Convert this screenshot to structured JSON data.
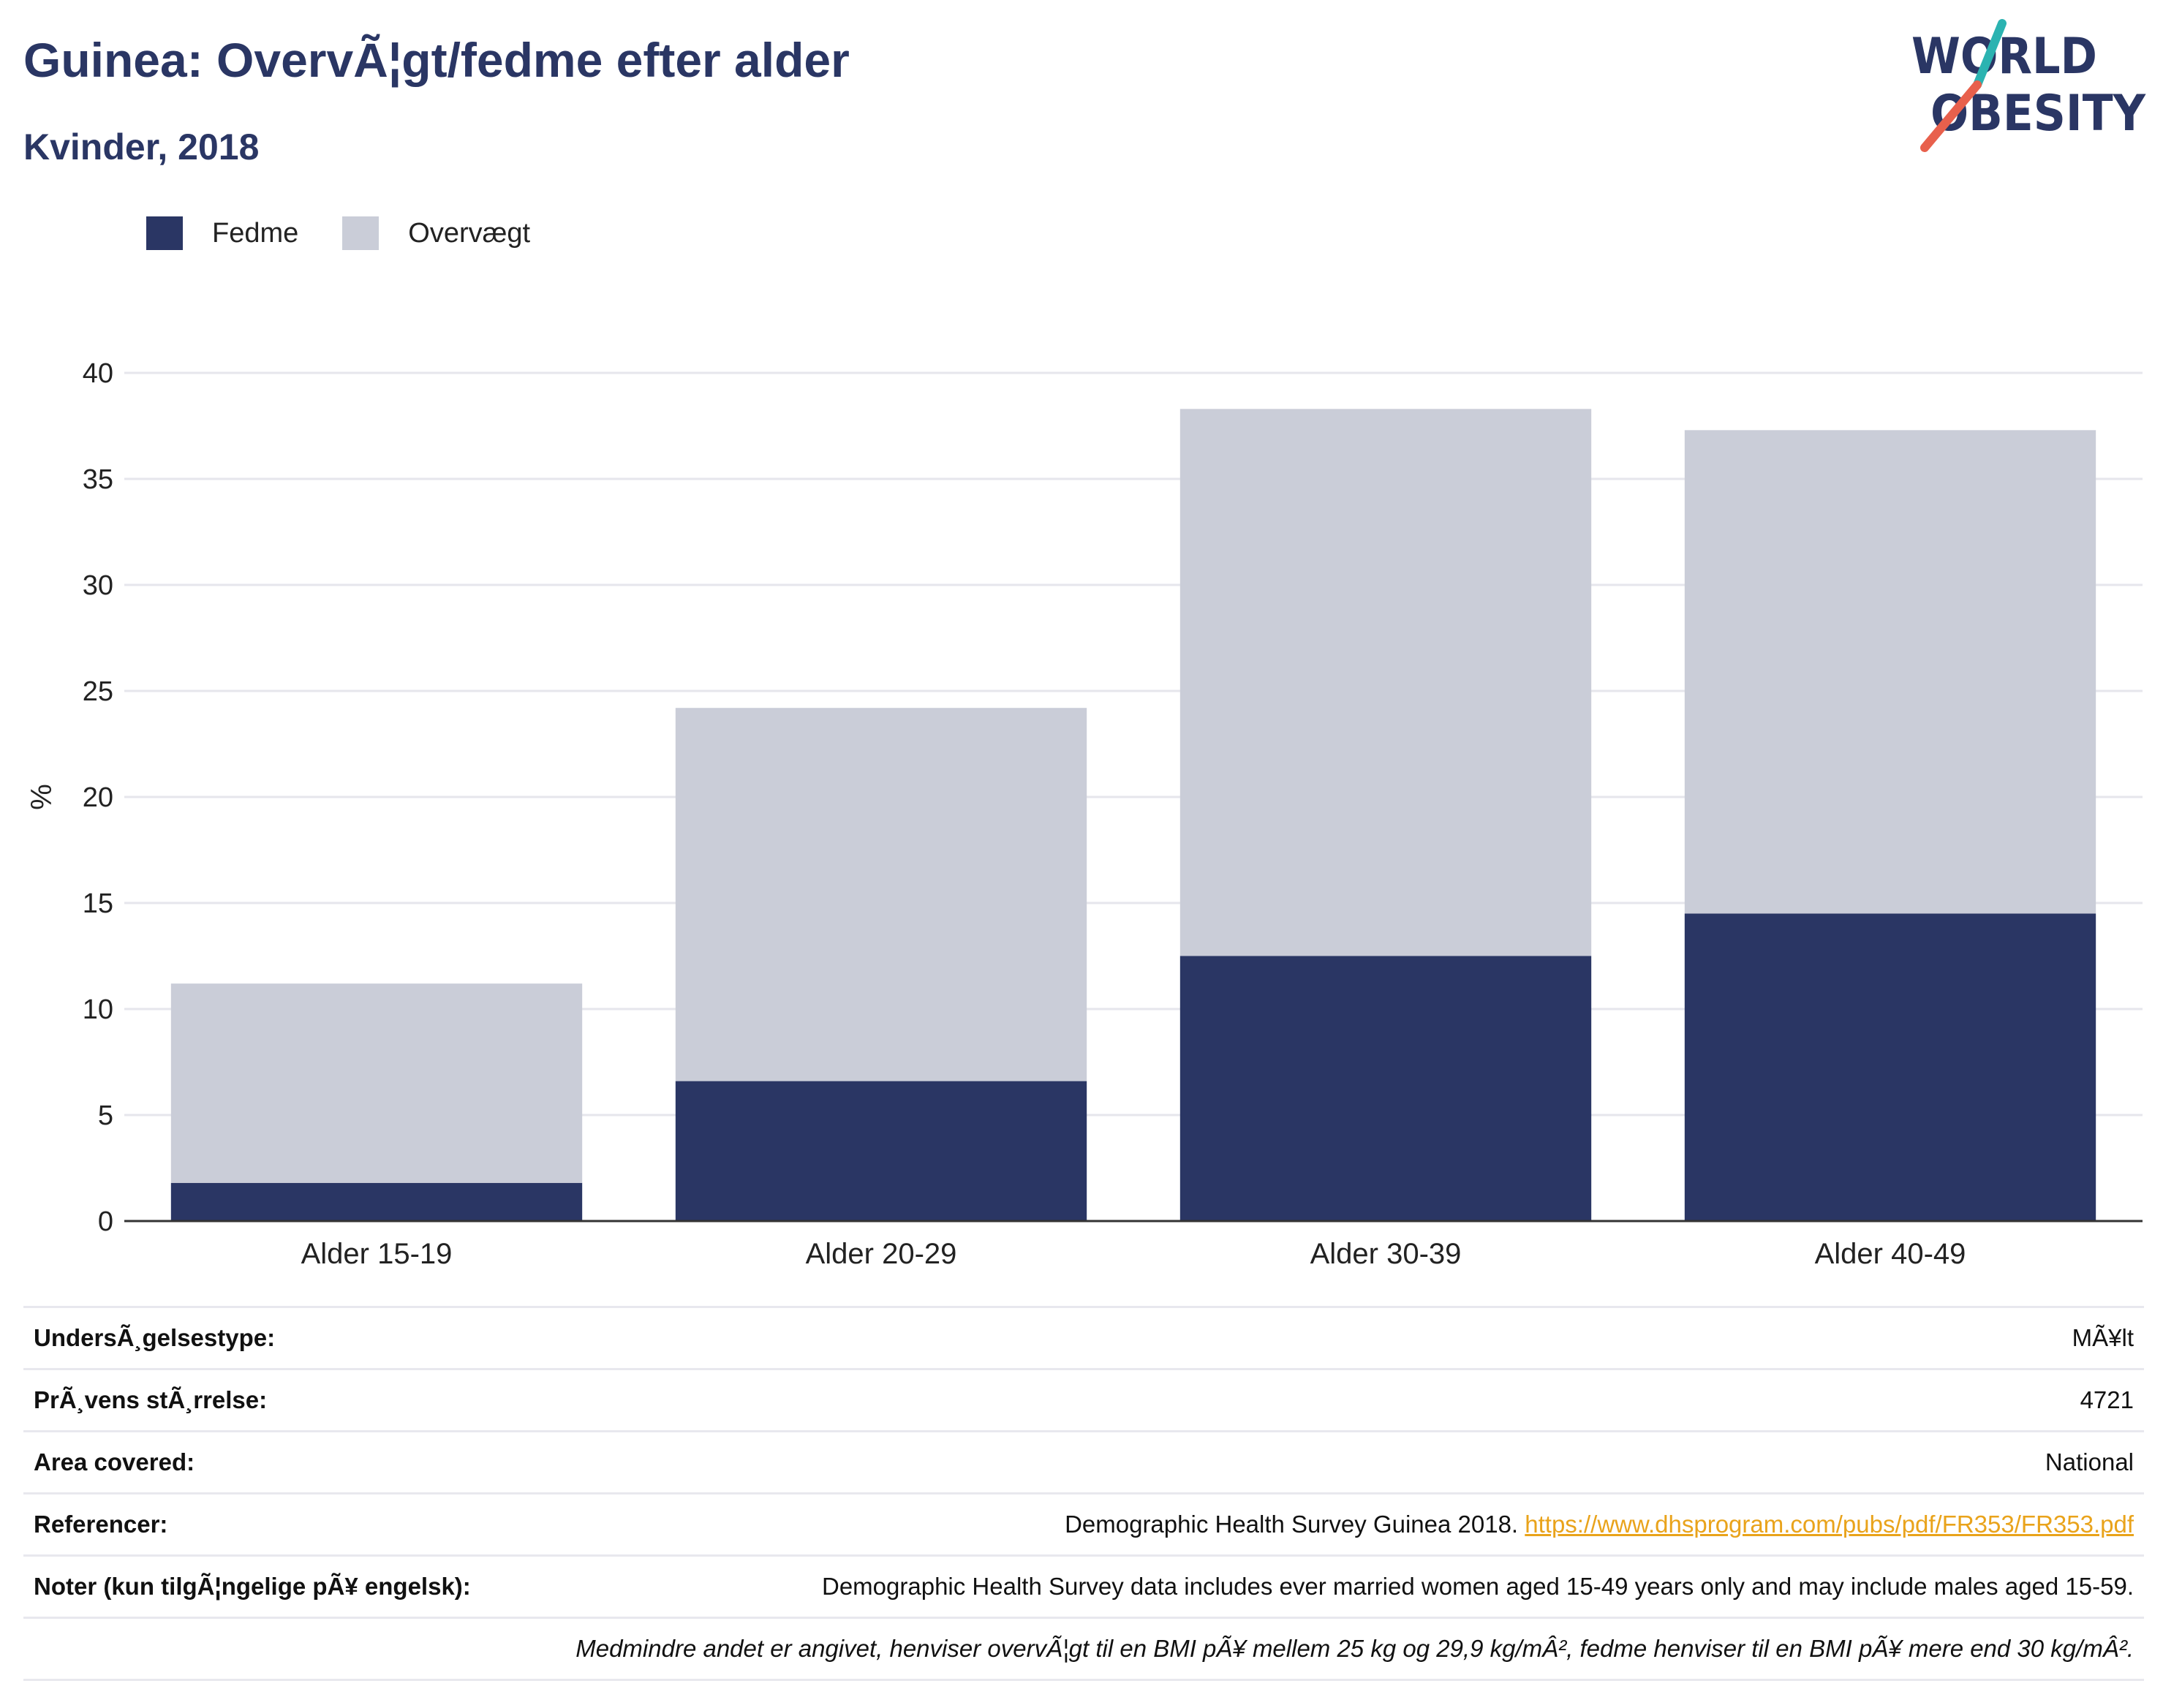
{
  "header": {
    "title": "Guinea: OvervÃ¦gt/fedme efter alder",
    "subtitle": "Kvinder, 2018"
  },
  "logo": {
    "line1": "WORLD",
    "line2": "OBESITY",
    "colors": {
      "text": "#2a3664",
      "slash_top": "#2bb3b1",
      "slash_bottom": "#e8604c"
    }
  },
  "colors": {
    "fedme": "#2a3664",
    "overvaegt": "#cacdd8",
    "grid": "#e6e6ec",
    "axis": "#333333",
    "link": "#e9a31b"
  },
  "chart_data": {
    "type": "bar",
    "stacked": true,
    "ylabel": "%",
    "ylim": [
      0,
      40
    ],
    "yticks": [
      0,
      5,
      10,
      15,
      20,
      25,
      30,
      35,
      40
    ],
    "categories": [
      "Alder 15-19",
      "Alder 20-29",
      "Alder 30-39",
      "Alder 40-49"
    ],
    "series": [
      {
        "name": "Fedme",
        "values": [
          1.8,
          6.6,
          12.5,
          14.5
        ]
      },
      {
        "name": "Overvægt",
        "values": [
          9.4,
          17.6,
          25.8,
          22.8
        ]
      }
    ],
    "legend_position": "top-left",
    "grid": true
  },
  "info": {
    "rows": [
      {
        "label": "UndersÃ¸gelsestype:",
        "value": "MÃ¥lt"
      },
      {
        "label": "PrÃ¸vens stÃ¸rrelse:",
        "value": "4721"
      },
      {
        "label": "Area covered:",
        "value": "National"
      },
      {
        "label": "Referencer:",
        "value": "Demographic Health Survey Guinea 2018.",
        "link": "https://www.dhsprogram.com/pubs/pdf/FR353/FR353.pdf"
      },
      {
        "label": "Noter (kun tilgÃ¦ngelige pÃ¥ engelsk):",
        "value": "Demographic Health Survey data includes ever married women aged 15-49 years only and may include males aged 15-59."
      }
    ],
    "footnote": "Medmindre andet er angivet, henviser overvÃ¦gt til en BMI pÃ¥ mellem 25 kg og 29,9 kg/mÂ², fedme henviser til en BMI pÃ¥ mere end 30 kg/mÂ²."
  }
}
